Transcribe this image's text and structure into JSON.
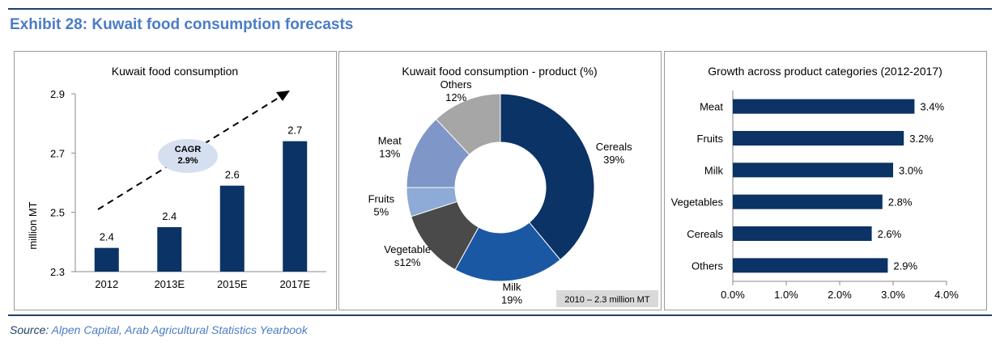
{
  "exhibit_title": "Exhibit 28:  Kuwait food consumption forecasts",
  "source": {
    "label": "Source:",
    "text": "Alpen Capital,  Arab Agricultural Statistics Yearbook"
  },
  "colors": {
    "navy": "#0b3365",
    "title_blue": "#4a7cc7",
    "ellipse": "#d5dfef"
  },
  "chart_data": [
    {
      "type": "bar",
      "title": "Kuwait food consumption",
      "ylabel": "million MT",
      "categories": [
        "2012",
        "2013E",
        "2015E",
        "2017E"
      ],
      "values": [
        2.38,
        2.45,
        2.59,
        2.74
      ],
      "data_labels": [
        "2.4",
        "2.4",
        "2.6",
        "2.7"
      ],
      "ylim": [
        2.3,
        2.9
      ],
      "yticks": [
        "2.3",
        "2.5",
        "2.7",
        "2.9"
      ],
      "annotation": {
        "line1": "CAGR",
        "line2": "2.9%"
      },
      "color": "#0b3365"
    },
    {
      "type": "pie",
      "title": "Kuwait food consumption  - product (%)",
      "note": "2010 – 2.3 million MT",
      "slices": [
        {
          "name": "Cereals",
          "value": 39,
          "label1": "Cereals",
          "label2": "39%",
          "color": "#0b3365"
        },
        {
          "name": "Milk",
          "value": 19,
          "label1": "Milk",
          "label2": "19%",
          "color": "#1a58a4"
        },
        {
          "name": "Vegetables",
          "value": 12,
          "label1": "Vegetable",
          "label2": "s12%",
          "color": "#4a4a4a"
        },
        {
          "name": "Fruits",
          "value": 5,
          "label1": "Fruits",
          "label2": "5%",
          "color": "#8eaad6"
        },
        {
          "name": "Meat",
          "value": 13,
          "label1": "Meat",
          "label2": "13%",
          "color": "#7f96c8"
        },
        {
          "name": "Others",
          "value": 12,
          "label1": "Others",
          "label2": "12%",
          "color": "#a6a6a6"
        }
      ]
    },
    {
      "type": "bar",
      "orientation": "horizontal",
      "title": "Growth across product categories (2012-2017)",
      "categories": [
        "Meat",
        "Fruits",
        "Milk",
        "Vegetables",
        "Cereals",
        "Others"
      ],
      "values": [
        3.4,
        3.2,
        3.0,
        2.8,
        2.6,
        2.9
      ],
      "data_labels": [
        "3.4%",
        "3.2%",
        "3.0%",
        "2.8%",
        "2.6%",
        "2.9%"
      ],
      "xlim": [
        0,
        4
      ],
      "xticks": [
        "0.0%",
        "1.0%",
        "2.0%",
        "3.0%",
        "4.0%"
      ],
      "color": "#0b3365"
    }
  ]
}
